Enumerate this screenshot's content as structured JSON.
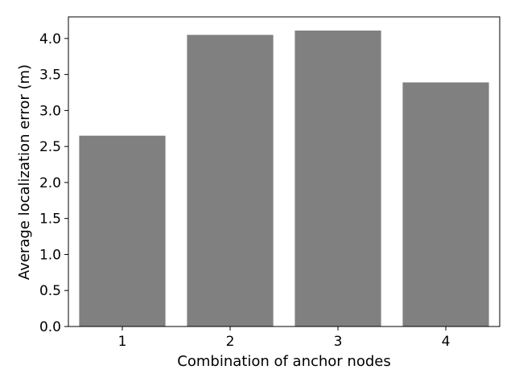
{
  "chart_data": {
    "type": "bar",
    "categories": [
      "1",
      "2",
      "3",
      "4"
    ],
    "values": [
      2.65,
      4.05,
      4.11,
      3.39
    ],
    "title": "",
    "xlabel": "Combination of anchor nodes",
    "ylabel": "Average localization error (m)",
    "ylim": [
      0,
      4.3
    ],
    "yticks": [
      "0.0",
      "0.5",
      "1.0",
      "1.5",
      "2.0",
      "2.5",
      "3.0",
      "3.5",
      "4.0"
    ],
    "bar_color": "#808080",
    "grid": false,
    "legend": "none"
  }
}
